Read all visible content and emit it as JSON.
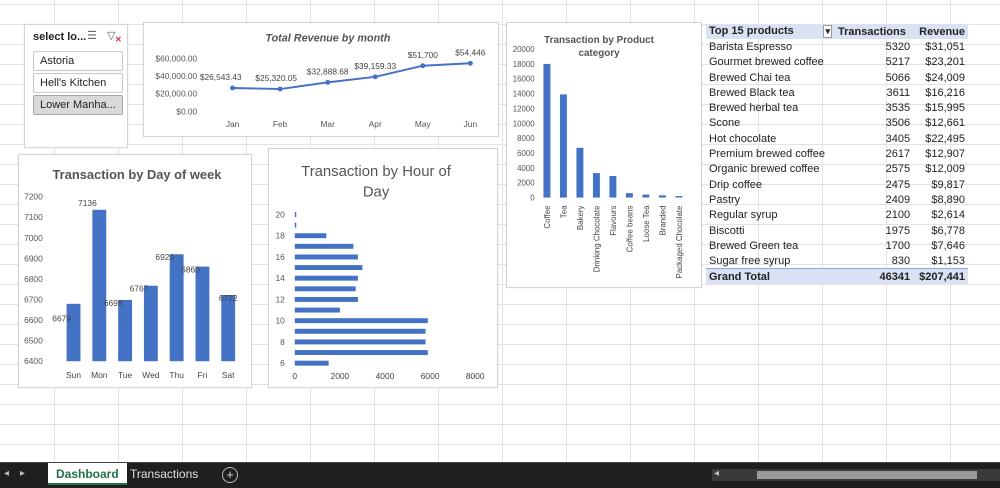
{
  "colors": {
    "bar": "#4472c4",
    "header_fill": "#d9e1f2",
    "tab_active": "#217346"
  },
  "slicer": {
    "title": "select lo...",
    "icons": [
      "multi-select-icon",
      "clear-filter-icon"
    ],
    "items": [
      {
        "label": "Astoria",
        "selected": false
      },
      {
        "label": "Hell's Kitchen",
        "selected": false
      },
      {
        "label": "Lower Manha...",
        "selected": true
      }
    ]
  },
  "chart_data": [
    {
      "id": "revenue",
      "type": "line",
      "title": "Total Revenue by month",
      "categories": [
        "Jan",
        "Feb",
        "Mar",
        "Apr",
        "May",
        "Jun"
      ],
      "values": [
        26543.43,
        25320.05,
        32888.68,
        39159.33,
        51700,
        54446
      ],
      "data_labels": [
        "$26,543.43",
        "$25,320.05",
        "$32,888.68",
        "$39,159.33",
        "$51,700",
        "$54,446"
      ],
      "ylim": [
        0,
        60000
      ],
      "yticks": [
        "$0.00",
        "$20,000.00",
        "$40,000.00",
        "$60,000.00"
      ],
      "grid": false
    },
    {
      "id": "dow",
      "type": "bar",
      "title": "Transaction by Day of week",
      "categories": [
        "Sun",
        "Mon",
        "Tue",
        "Wed",
        "Thu",
        "Fri",
        "Sat"
      ],
      "values": [
        6679,
        7136,
        6698,
        6767,
        6920,
        6860,
        6722
      ],
      "ylim": [
        6400,
        7200
      ],
      "yticks": [
        "6400",
        "6500",
        "6600",
        "6700",
        "6800",
        "6900",
        "7000",
        "7100",
        "7200"
      ]
    },
    {
      "id": "hour",
      "type": "bar",
      "orientation": "horizontal",
      "title": "Transaction by Hour of Day",
      "y": [
        6,
        7,
        8,
        9,
        10,
        11,
        12,
        13,
        14,
        15,
        16,
        17,
        18,
        19,
        20
      ],
      "values": [
        1500,
        5900,
        5800,
        5800,
        5900,
        2000,
        2800,
        2700,
        2800,
        3000,
        2800,
        2600,
        1400,
        30,
        10
      ],
      "xlim": [
        0,
        8000
      ],
      "xticks": [
        "0",
        "2000",
        "4000",
        "6000",
        "8000"
      ],
      "yticks": [
        "6",
        "8",
        "10",
        "12",
        "14",
        "16",
        "18",
        "20"
      ]
    },
    {
      "id": "category",
      "type": "bar",
      "title": "Transaction by Product category",
      "categories": [
        "Coffee",
        "Tea",
        "Bakery",
        "Drinking Chocolate",
        "Flavours",
        "Coffee beans",
        "Loose Tea",
        "Branded",
        "Packaged Chocolate"
      ],
      "values": [
        18000,
        13900,
        6700,
        3300,
        2900,
        600,
        400,
        300,
        200
      ],
      "ylim": [
        0,
        20000
      ],
      "yticks": [
        "0",
        "2000",
        "4000",
        "6000",
        "8000",
        "10000",
        "12000",
        "14000",
        "16000",
        "18000",
        "20000"
      ]
    }
  ],
  "pivot": {
    "headers": [
      "Top 15 products",
      "Transactions",
      "Revenue"
    ],
    "rows": [
      [
        "Barista Espresso",
        "5320",
        "$31,051"
      ],
      [
        "Gourmet brewed coffee",
        "5217",
        "$23,201"
      ],
      [
        "Brewed Chai tea",
        "5066",
        "$24,009"
      ],
      [
        "Brewed Black tea",
        "3611",
        "$16,216"
      ],
      [
        "Brewed herbal tea",
        "3535",
        "$15,995"
      ],
      [
        "Scone",
        "3506",
        "$12,661"
      ],
      [
        "Hot chocolate",
        "3405",
        "$22,495"
      ],
      [
        "Premium brewed coffee",
        "2617",
        "$12,907"
      ],
      [
        "Organic brewed coffee",
        "2575",
        "$12,009"
      ],
      [
        "Drip coffee",
        "2475",
        "$9,817"
      ],
      [
        "Pastry",
        "2409",
        "$8,890"
      ],
      [
        "Regular syrup",
        "2100",
        "$2,614"
      ],
      [
        "Biscotti",
        "1975",
        "$6,778"
      ],
      [
        "Brewed Green tea",
        "1700",
        "$7,646"
      ],
      [
        "Sugar free syrup",
        "830",
        "$1,153"
      ]
    ],
    "total": [
      "Grand Total",
      "46341",
      "$207,441"
    ]
  },
  "sheet_tabs": [
    {
      "label": "Dashboard",
      "active": true
    },
    {
      "label": "Transactions",
      "active": false
    }
  ]
}
